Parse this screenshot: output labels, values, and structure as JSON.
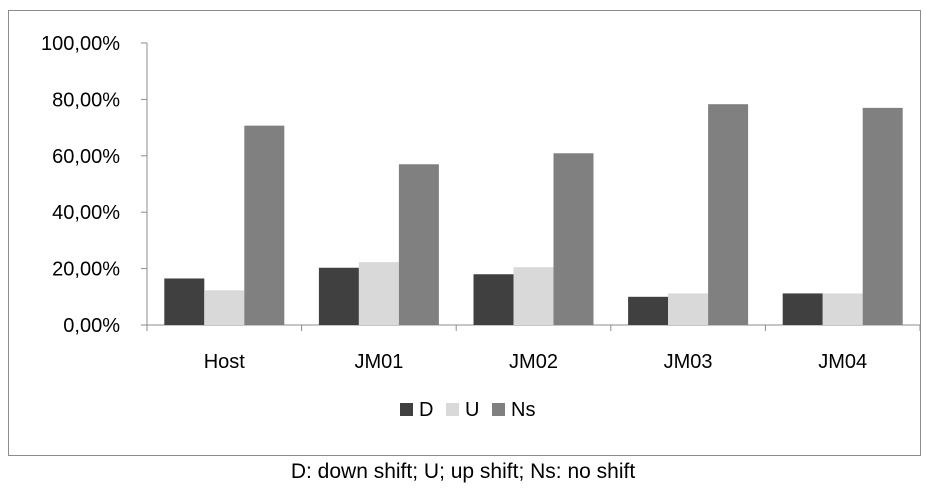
{
  "chart_data": {
    "type": "bar",
    "categories": [
      "Host",
      "JM01",
      "JM02",
      "JM03",
      "JM04"
    ],
    "series": [
      {
        "name": "D",
        "color": "#404040",
        "values": [
          16.5,
          20.3,
          18.0,
          10.0,
          11.2
        ]
      },
      {
        "name": "U",
        "color": "#d9d9d9",
        "values": [
          12.3,
          22.3,
          20.5,
          11.2,
          11.2
        ]
      },
      {
        "name": "Ns",
        "color": "#808080",
        "values": [
          70.7,
          57.0,
          60.9,
          78.3,
          77.0
        ]
      }
    ],
    "y_ticks": [
      "0,00%",
      "20,00%",
      "40,00%",
      "60,00%",
      "80,00%",
      "100,00%"
    ],
    "ylim": [
      0,
      100
    ],
    "grid": false,
    "legend_position": "bottom"
  },
  "caption": "D: down shift; U; up shift; Ns: no shift"
}
